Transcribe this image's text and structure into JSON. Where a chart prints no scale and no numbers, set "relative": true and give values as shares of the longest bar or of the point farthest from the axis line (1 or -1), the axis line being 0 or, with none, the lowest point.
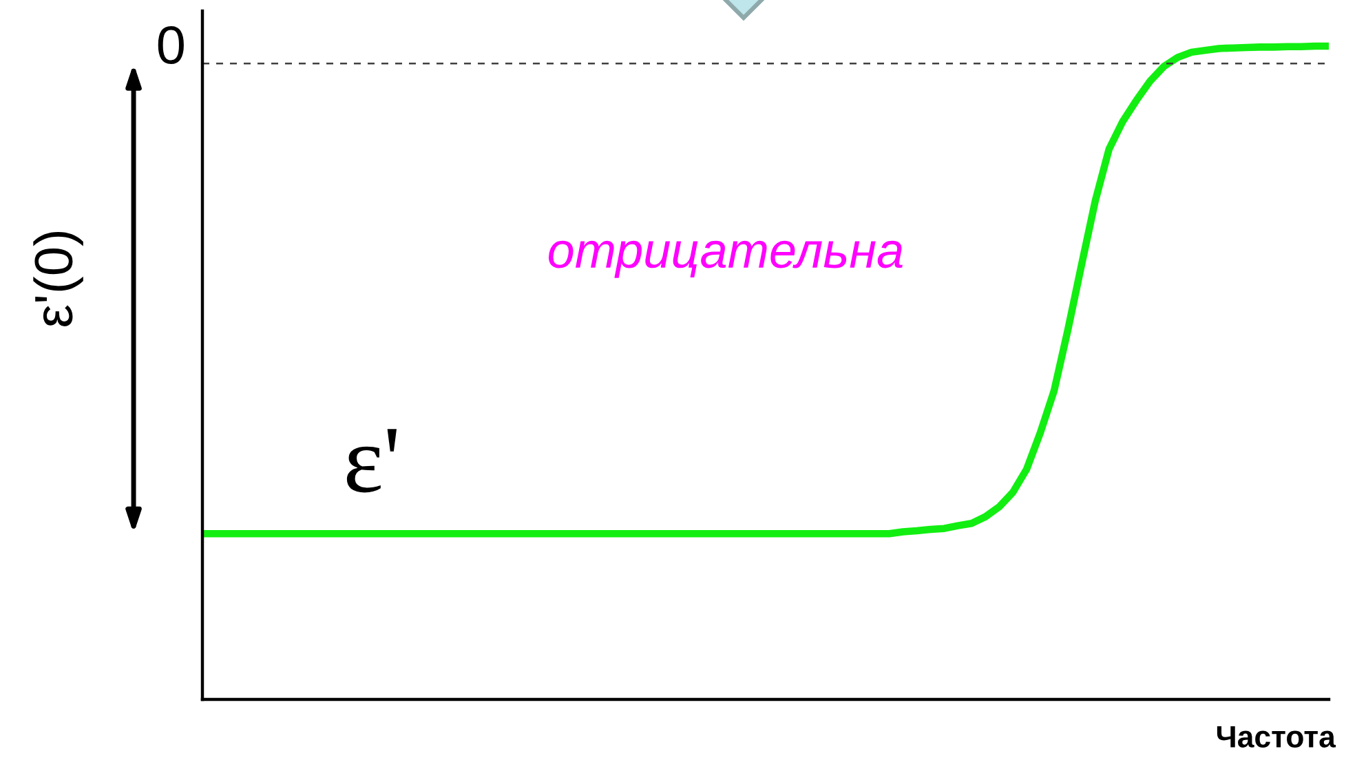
{
  "chart_data": {
    "type": "line",
    "relative": true,
    "categories": [
      null,
      null,
      null,
      null,
      null,
      null,
      null,
      null,
      null,
      null,
      null,
      null,
      null,
      null,
      null,
      null,
      null,
      null,
      null,
      null,
      null,
      null,
      null,
      null,
      null,
      null,
      null,
      null,
      null,
      null,
      null,
      null,
      null,
      null,
      null,
      null,
      null,
      null,
      null,
      null,
      null,
      null,
      null,
      null,
      null,
      null,
      null,
      null,
      null,
      null,
      null,
      null,
      null,
      null,
      null,
      null,
      null,
      null,
      null,
      null,
      null,
      null,
      null,
      null,
      null,
      null,
      null,
      null,
      null,
      null,
      null,
      null,
      null,
      null,
      null,
      null,
      null,
      null,
      null,
      null,
      null,
      null,
      null
    ],
    "series": [
      {
        "name": "ε'",
        "color": "#12ee12",
        "values": [
          -1,
          -1,
          -1,
          -1,
          -1,
          -1,
          -1,
          -1,
          -1,
          -1,
          -1,
          -1,
          -1,
          -1,
          -1,
          -1,
          -1,
          -1,
          -1,
          -1,
          -1,
          -1,
          -1,
          -1,
          -1,
          -1,
          -1,
          -1,
          -1,
          -1,
          -1,
          -1,
          -1,
          -1,
          -1,
          -1,
          -1,
          -1,
          -1,
          -1,
          -1,
          -1,
          -1,
          -1,
          -1,
          -1,
          -1,
          -1,
          -1,
          -1,
          -1,
          -0.996,
          -0.994,
          -0.991,
          -0.989,
          -0.983,
          -0.978,
          -0.964,
          -0.943,
          -0.912,
          -0.863,
          -0.785,
          -0.696,
          -0.567,
          -0.428,
          -0.292,
          -0.182,
          -0.123,
          -0.078,
          -0.037,
          -0.006,
          0.013,
          0.024,
          0.028,
          0.032,
          0.033,
          0.034,
          0.035,
          0.035,
          0.036,
          0.036,
          0.037,
          0.037
        ]
      }
    ],
    "ref_lines": [
      {
        "axis": "y",
        "value": 0,
        "label": "0",
        "line_style": "dashed",
        "color": "#404040"
      }
    ],
    "annotations": [
      "ε'(0)",
      "отрицательна",
      "Частота"
    ]
  }
}
